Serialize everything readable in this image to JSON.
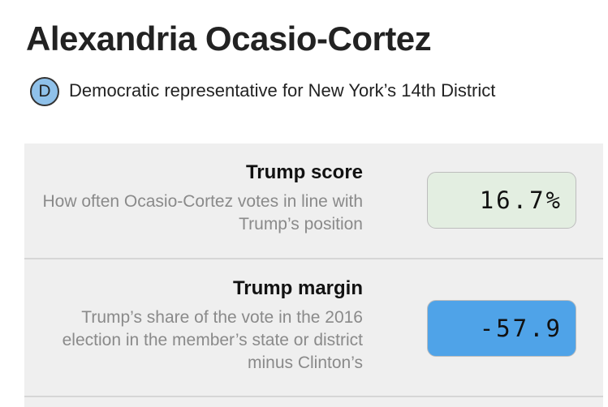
{
  "header": {
    "name": "Alexandria Ocasio-Cortez",
    "party_badge": "D",
    "description": "Democratic representative for New York’s 14th District"
  },
  "rows": [
    {
      "title": "Trump score",
      "description": "How often Ocasio-Cortez votes in line with Trump’s position",
      "value": "16.7%"
    },
    {
      "title": "Trump margin",
      "description": "Trump’s share of the vote in the 2016 election in the member’s state or district minus Clinton’s",
      "value": "-57.9"
    }
  ]
}
